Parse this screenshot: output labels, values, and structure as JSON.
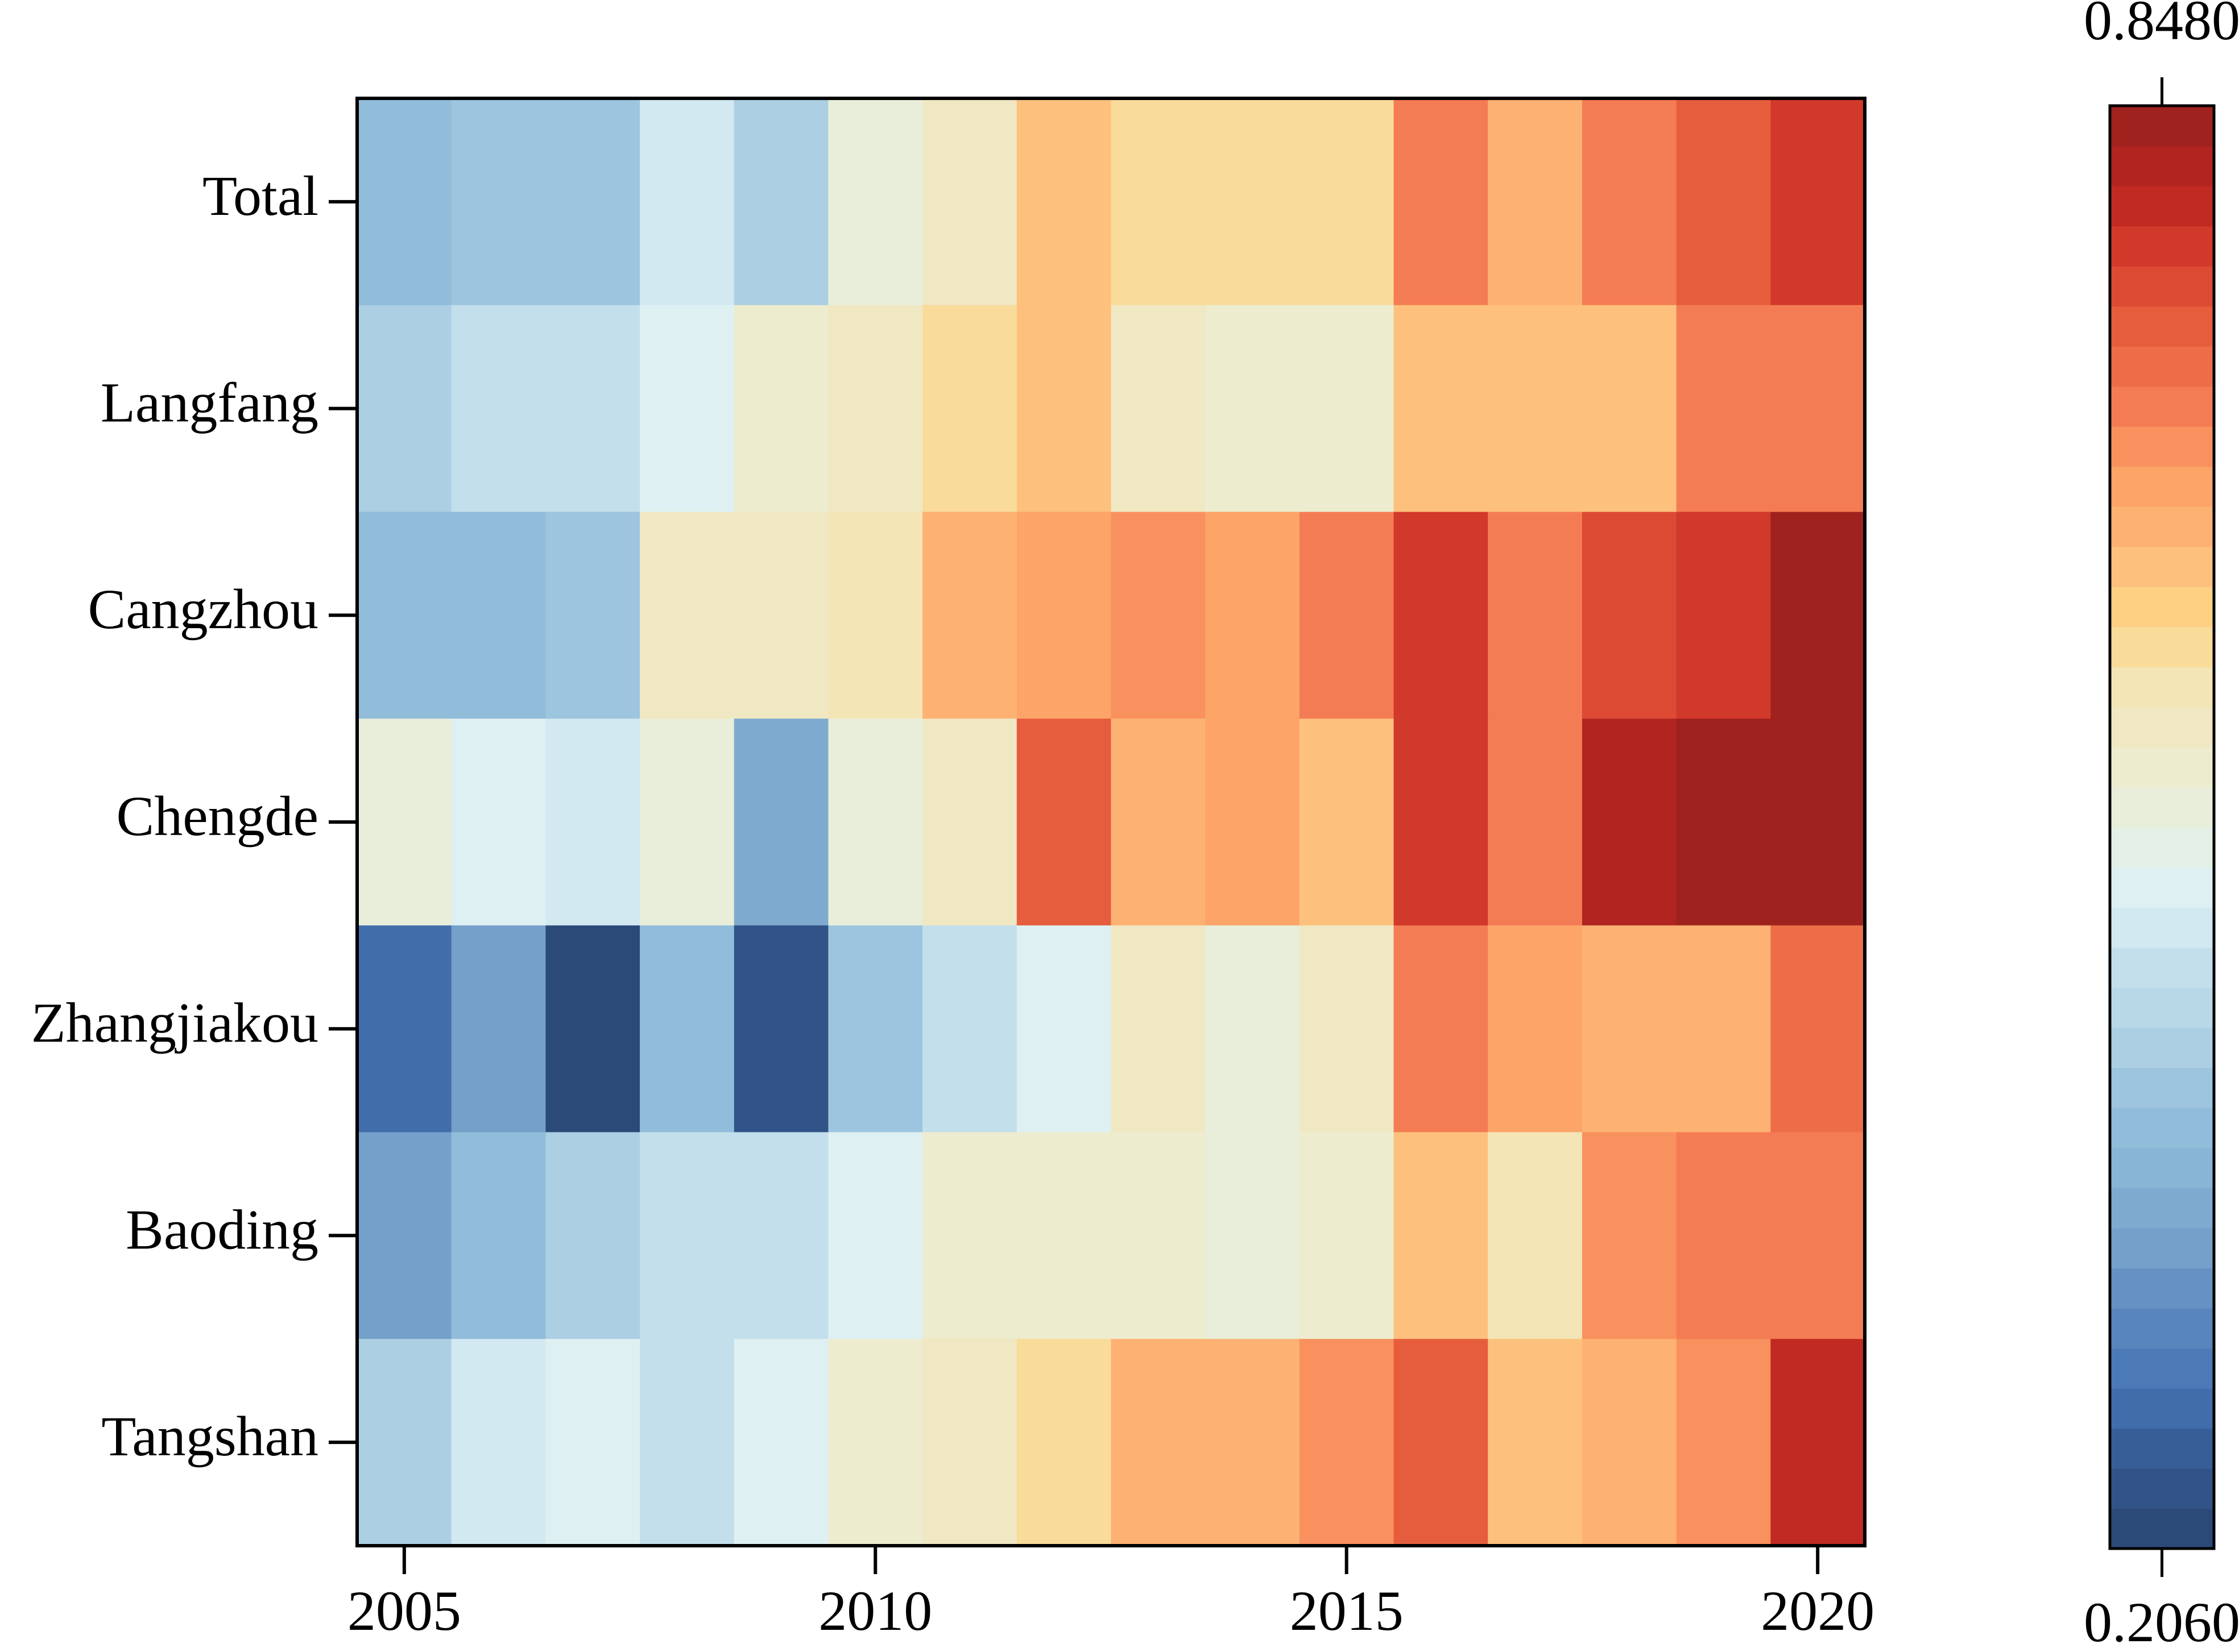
{
  "chart_data": {
    "type": "heatmap",
    "x": [
      2005,
      2006,
      2007,
      2008,
      2009,
      2010,
      2011,
      2012,
      2013,
      2014,
      2015,
      2016,
      2017,
      2018,
      2019,
      2020
    ],
    "categories": [
      "Total",
      "Langfang",
      "Cangzhou",
      "Chengde",
      "Zhangjiakou",
      "Baoding",
      "Tangshan"
    ],
    "values": [
      [
        0.386,
        0.418,
        0.405,
        0.488,
        0.424,
        0.527,
        0.578,
        0.636,
        0.61,
        0.61,
        0.61,
        0.72,
        0.655,
        0.707,
        0.745,
        0.777
      ],
      [
        0.424,
        0.463,
        0.463,
        0.501,
        0.559,
        0.572,
        0.61,
        0.636,
        0.578,
        0.546,
        0.546,
        0.636,
        0.636,
        0.636,
        0.707,
        0.72
      ],
      [
        0.386,
        0.386,
        0.405,
        0.566,
        0.578,
        0.598,
        0.655,
        0.675,
        0.694,
        0.675,
        0.707,
        0.777,
        0.707,
        0.765,
        0.777,
        0.848
      ],
      [
        0.527,
        0.495,
        0.476,
        0.527,
        0.36,
        0.527,
        0.578,
        0.758,
        0.655,
        0.681,
        0.636,
        0.777,
        0.707,
        0.822,
        0.842,
        0.848
      ],
      [
        0.27,
        0.334,
        0.206,
        0.386,
        0.238,
        0.405,
        0.469,
        0.495,
        0.578,
        0.527,
        0.578,
        0.72,
        0.675,
        0.655,
        0.655,
        0.726
      ],
      [
        0.334,
        0.386,
        0.431,
        0.463,
        0.463,
        0.495,
        0.553,
        0.553,
        0.553,
        0.527,
        0.553,
        0.636,
        0.591,
        0.688,
        0.72,
        0.707
      ],
      [
        0.431,
        0.476,
        0.495,
        0.463,
        0.495,
        0.559,
        0.578,
        0.61,
        0.655,
        0.655,
        0.688,
        0.758,
        0.636,
        0.655,
        0.688,
        0.797
      ]
    ],
    "xlim": [
      2004.5,
      2020.5
    ],
    "xticks": [
      2005,
      2010,
      2015,
      2020
    ],
    "colorbar": {
      "lim": [
        0.206,
        0.848
      ],
      "ticks": [
        {
          "value": 0.206,
          "label": "0.2060"
        },
        {
          "value": 0.848,
          "label": "0.8480"
        }
      ],
      "levels": 36,
      "colors": [
        "#2b4a78",
        "#365a93",
        "#4575b4",
        "#5b88bf",
        "#74a0c9",
        "#86b2d5",
        "#95c0dc",
        "#b0d2e5",
        "#c3dfeb",
        "#def0f6",
        "#e6efe0",
        "#eeebcc",
        "#f3e5b5",
        "#fdd486",
        "#fdb97a",
        "#fda066",
        "#f47c54",
        "#e8623f",
        "#d9402e",
        "#bd2620",
        "#a0221e"
      ]
    }
  }
}
